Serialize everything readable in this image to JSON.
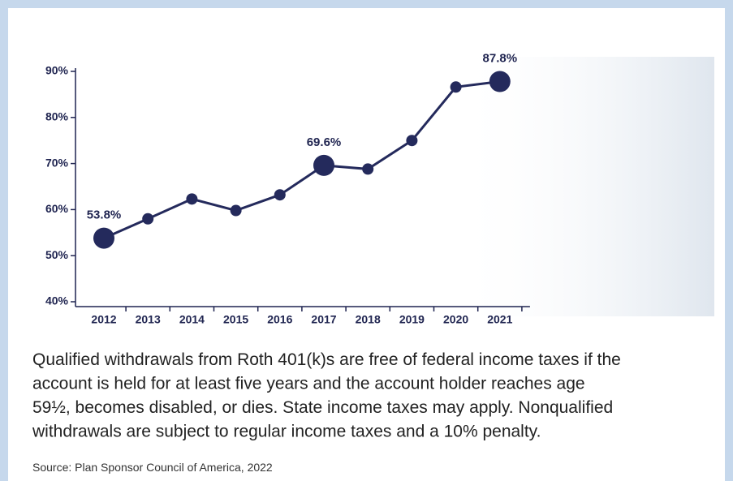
{
  "chart_data": {
    "type": "line",
    "categories": [
      "2012",
      "2013",
      "2014",
      "2015",
      "2016",
      "2017",
      "2018",
      "2019",
      "2020",
      "2021"
    ],
    "series": [
      {
        "color": "#242a5c",
        "values": [
          53.8,
          58,
          62.3,
          59.8,
          63.2,
          69.6,
          68.8,
          75,
          86.6,
          87.8
        ],
        "value_labels": [
          "53.8%",
          null,
          null,
          null,
          null,
          "69.6%",
          null,
          null,
          null,
          "87.8%"
        ]
      }
    ],
    "ylim": [
      40,
      90
    ],
    "yticks": [
      {
        "value": 40,
        "label": "40%"
      },
      {
        "value": 50,
        "label": "50%"
      },
      {
        "value": 60,
        "label": "60%"
      },
      {
        "value": 70,
        "label": "70%"
      },
      {
        "value": 80,
        "label": "80%"
      },
      {
        "value": 90,
        "label": "90%"
      }
    ],
    "grid": false
  },
  "caption": [
    "Qualified withdrawals from Roth 401(k)s are free of federal income taxes if the",
    "account is held for at least five years and the account holder reaches age",
    "59½, becomes disabled, or dies. State income taxes may apply. Nonqualified",
    "withdrawals are subject to regular income taxes and a 10% penalty."
  ],
  "source": "Source: Plan Sponsor Council of America, 2022"
}
